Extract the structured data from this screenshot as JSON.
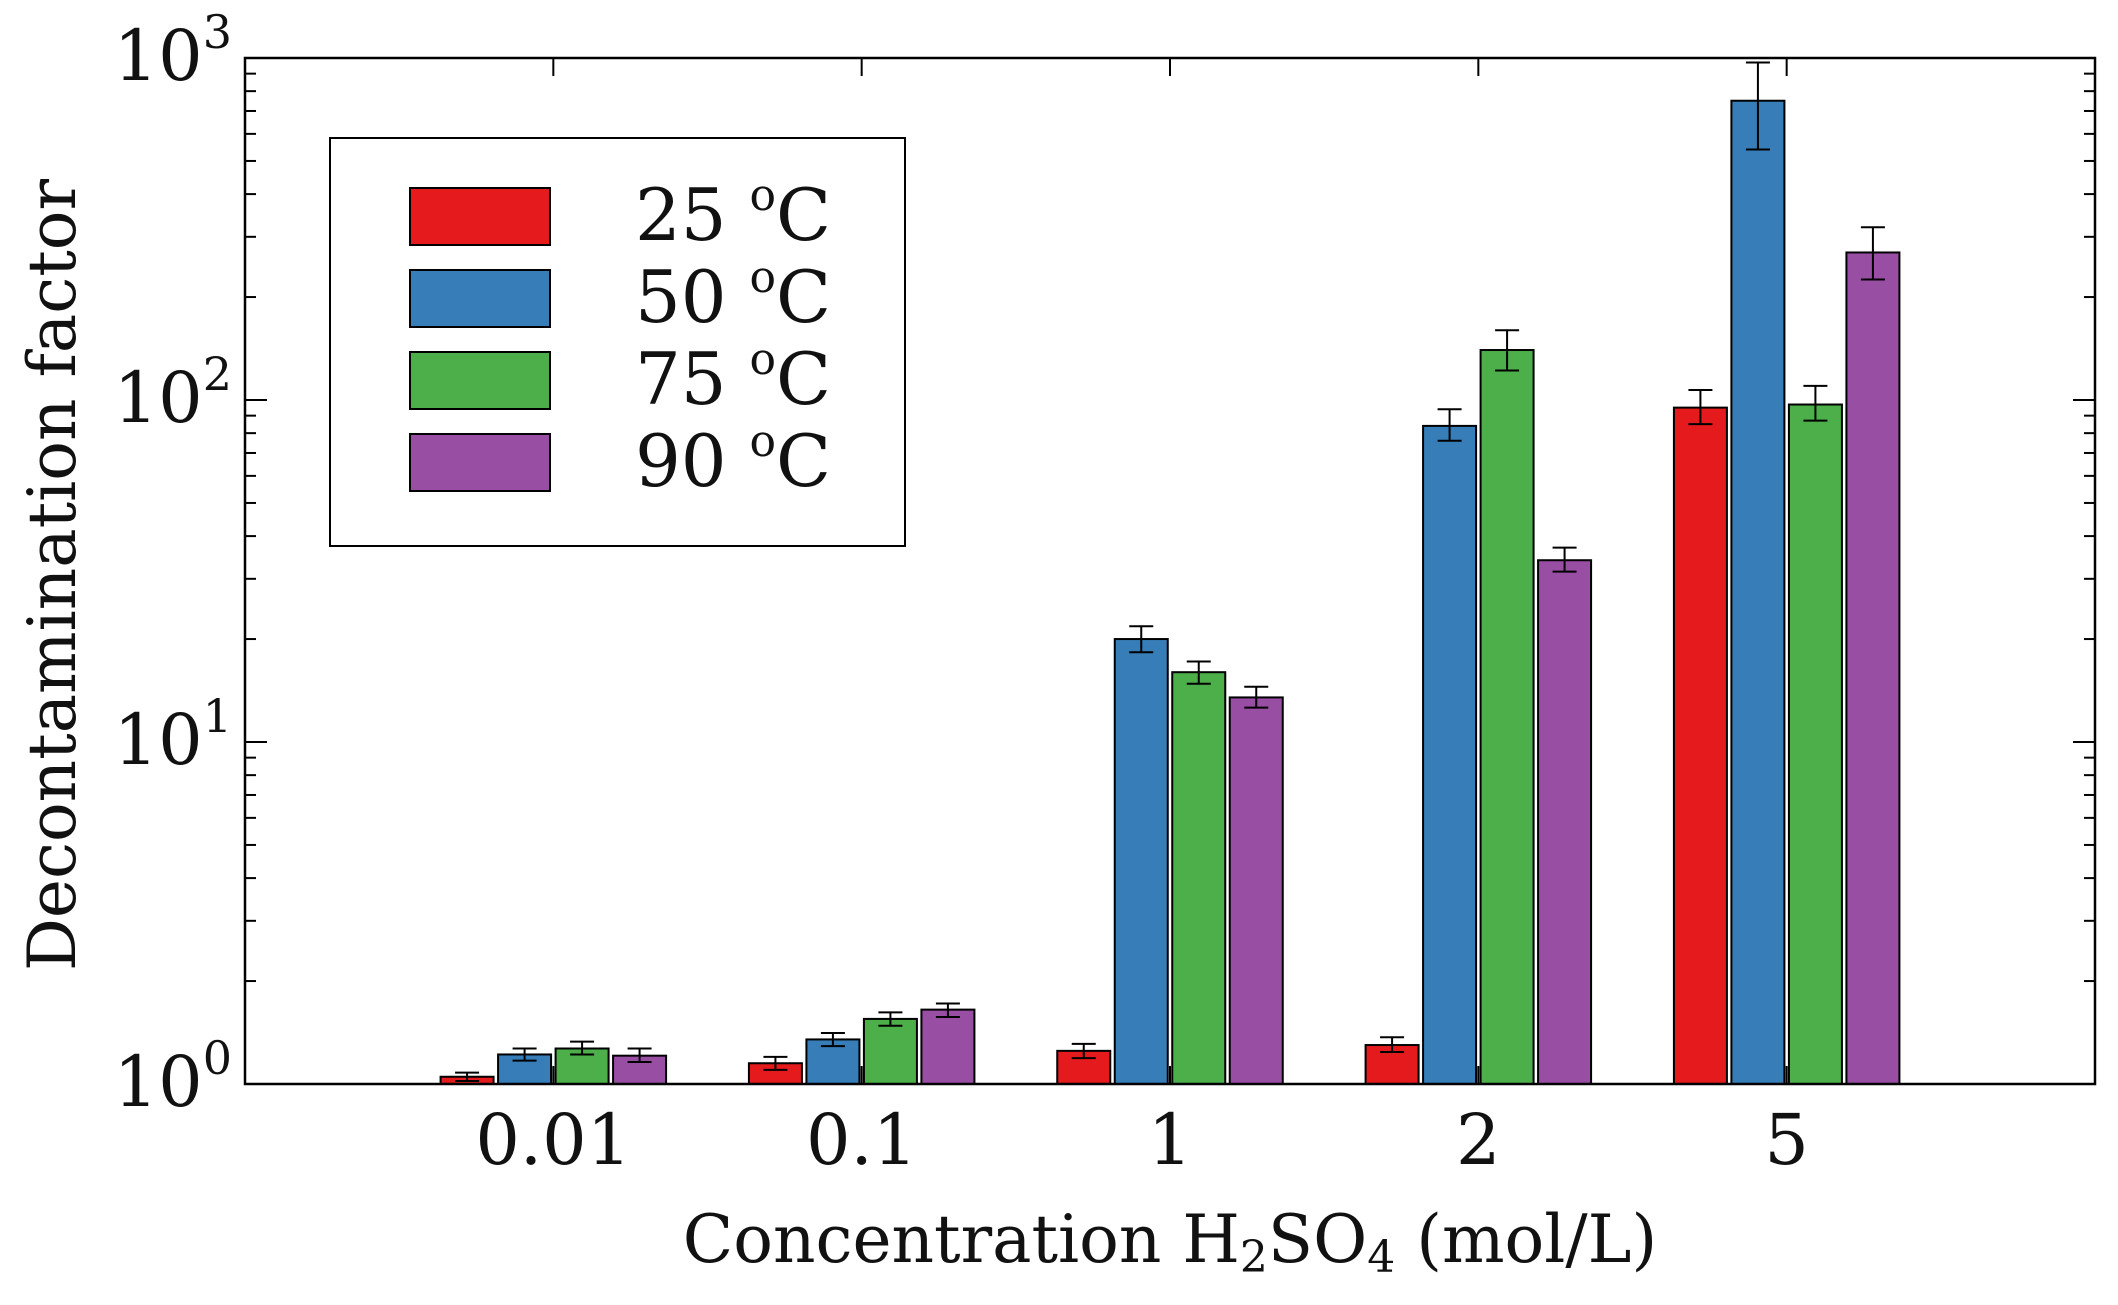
{
  "chart_data": {
    "type": "bar",
    "title": "",
    "xlabel": "Concentration H₂SO₄ (mol/L)",
    "xlabel_parts": {
      "pre": "Concentration H",
      "sub1": "2",
      "mid": "SO",
      "sub2": "4",
      "post": " (mol/L)"
    },
    "ylabel": "Decontamination factor",
    "yscale": "log",
    "ylim": [
      1,
      1000
    ],
    "yticks": [
      {
        "base": "10",
        "exp": "0"
      },
      {
        "base": "10",
        "exp": "1"
      },
      {
        "base": "10",
        "exp": "2"
      },
      {
        "base": "10",
        "exp": "3"
      }
    ],
    "categories": [
      "0.01",
      "0.1",
      "1",
      "2",
      "5"
    ],
    "series": [
      {
        "name": "25 °C",
        "label_num": "25",
        "label_deg": "o",
        "label_unit": "C",
        "color": "#e41a1c",
        "values": [
          1.05,
          1.15,
          1.25,
          1.3,
          95
        ],
        "err_low": [
          1.02,
          1.1,
          1.19,
          1.24,
          85
        ],
        "err_high": [
          1.08,
          1.2,
          1.31,
          1.37,
          107
        ]
      },
      {
        "name": "50 °C",
        "label_num": "50",
        "label_deg": "o",
        "label_unit": "C",
        "color": "#377eb8",
        "values": [
          1.22,
          1.35,
          20,
          84,
          750
        ],
        "err_low": [
          1.17,
          1.29,
          18.3,
          76,
          540
        ],
        "err_high": [
          1.27,
          1.41,
          21.8,
          94,
          970
        ]
      },
      {
        "name": "75 °C",
        "label_num": "75",
        "label_deg": "o",
        "label_unit": "C",
        "color": "#4daf4a",
        "values": [
          1.27,
          1.55,
          16,
          140,
          97
        ],
        "err_low": [
          1.22,
          1.48,
          14.8,
          122,
          87
        ],
        "err_high": [
          1.33,
          1.62,
          17.2,
          160,
          110
        ]
      },
      {
        "name": "90 °C",
        "label_num": "90",
        "label_deg": "o",
        "label_unit": "C",
        "color": "#984ea3",
        "values": [
          1.21,
          1.65,
          13.5,
          34,
          270
        ],
        "err_low": [
          1.16,
          1.57,
          12.6,
          31.5,
          225
        ],
        "err_high": [
          1.27,
          1.72,
          14.5,
          37,
          320
        ]
      }
    ],
    "legend_position": "top-left",
    "grid": false
  }
}
